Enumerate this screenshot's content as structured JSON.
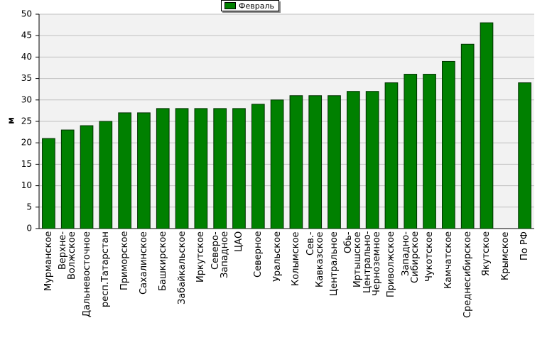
{
  "chart_data": {
    "type": "bar",
    "y_label": "м",
    "legend_position": "top",
    "categories": [
      "Мурманское",
      "Верхне-\nВолжское",
      "Дальневосточное",
      "респ.Татарстан",
      "Приморское",
      "Сахалинское",
      "Башкирское",
      "Забайкальское",
      "Иркутское",
      "Северо-\nЗападное",
      "ЦАО",
      "Северное",
      "Уральское",
      "Колымское",
      "Сев.-\nКавказское",
      "Центральное",
      "Обь-\nИртышское",
      "Центрально-\nЧерноземное",
      "Приволжское",
      "Западно-\nСибирское",
      "Чукотское",
      "Камчатское",
      "Среднесибирское",
      "Якутское",
      "Крымское",
      "По РФ"
    ],
    "series": [
      {
        "name": "Февраль",
        "color": "#008000",
        "values": [
          21,
          23,
          24,
          25,
          27,
          27,
          28,
          28,
          28,
          28,
          28,
          29,
          30,
          31,
          31,
          31,
          32,
          32,
          34,
          36,
          36,
          39,
          43,
          48,
          null,
          34
        ]
      }
    ],
    "ylim": [
      0,
      50
    ],
    "yticks": [
      0,
      5,
      10,
      15,
      20,
      25,
      30,
      35,
      40,
      45,
      50
    ],
    "grid": true
  }
}
